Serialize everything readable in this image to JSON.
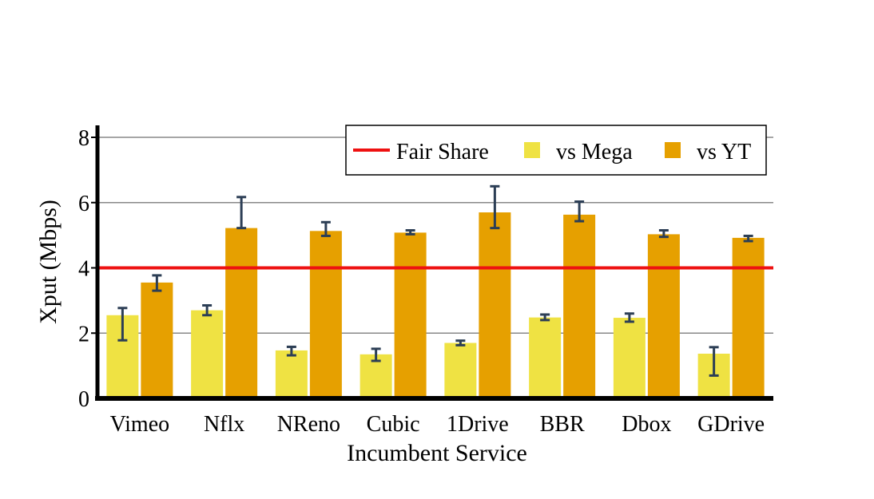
{
  "chart_data": {
    "type": "bar",
    "xlabel": "Incumbent Service",
    "ylabel": "Xput (Mbps)",
    "ylim": [
      0,
      8.4
    ],
    "yticks": [
      0,
      2,
      4,
      6,
      8
    ],
    "grid": true,
    "legend_position": "top-right",
    "categories": [
      "Vimeo",
      "Nflx",
      "NReno",
      "Cubic",
      "1Drive",
      "BBR",
      "Dbox",
      "GDrive"
    ],
    "fair_share": {
      "name": "Fair Share",
      "value": 4,
      "color": "#ee1111"
    },
    "series": [
      {
        "name": "vs Mega",
        "color": "#efe243",
        "values": [
          2.55,
          2.7,
          1.47,
          1.35,
          1.7,
          2.48,
          2.47,
          1.37
        ],
        "err_low": [
          1.78,
          2.55,
          1.32,
          1.15,
          1.63,
          2.4,
          2.35,
          0.7
        ],
        "err_high": [
          2.77,
          2.85,
          1.58,
          1.52,
          1.77,
          2.57,
          2.6,
          1.57
        ]
      },
      {
        "name": "vs YT",
        "color": "#e6a000",
        "values": [
          3.55,
          5.22,
          5.13,
          5.08,
          5.7,
          5.63,
          5.03,
          4.92
        ],
        "err_low": [
          3.3,
          5.22,
          4.98,
          5.03,
          5.22,
          5.43,
          4.95,
          4.82
        ],
        "err_high": [
          3.77,
          6.17,
          5.4,
          5.15,
          6.5,
          6.03,
          5.15,
          4.98
        ]
      }
    ]
  }
}
